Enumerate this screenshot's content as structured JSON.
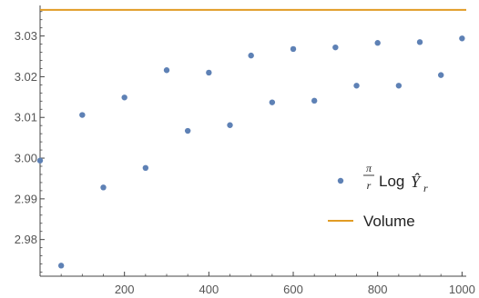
{
  "chart_data": {
    "type": "scatter",
    "xlim": [
      0,
      1010
    ],
    "ylim": [
      2.971,
      3.0375
    ],
    "x_ticks": [
      200,
      400,
      600,
      800,
      1000
    ],
    "x_tick_labels": [
      "200",
      "400",
      "600",
      "800",
      "1000"
    ],
    "y_ticks": [
      2.98,
      2.99,
      3.0,
      3.01,
      3.02,
      3.03
    ],
    "y_tick_labels": [
      "2.98",
      "2.99",
      "3.00",
      "3.01",
      "3.02",
      "3.03"
    ],
    "grid": false,
    "legend_position": "bottom-right",
    "series": [
      {
        "name": "Log Ŷ",
        "legend_parts": {
          "numerator": "π",
          "denominator": "r",
          "text": "Log ",
          "variable": "Ŷ",
          "subscript": "r"
        },
        "kind": "scatter",
        "color": "#5e81b5",
        "points": [
          [
            0,
            2.9994
          ],
          [
            50,
            2.9736
          ],
          [
            100,
            3.0106
          ],
          [
            150,
            2.9928
          ],
          [
            200,
            3.0149
          ],
          [
            250,
            2.9976
          ],
          [
            300,
            3.0216
          ],
          [
            350,
            3.0067
          ],
          [
            400,
            3.021
          ],
          [
            450,
            3.0081
          ],
          [
            500,
            3.0252
          ],
          [
            550,
            3.0137
          ],
          [
            600,
            3.0268
          ],
          [
            650,
            3.0141
          ],
          [
            700,
            3.0272
          ],
          [
            750,
            3.0178
          ],
          [
            800,
            3.0283
          ],
          [
            850,
            3.0178
          ],
          [
            900,
            3.0285
          ],
          [
            950,
            3.0204
          ],
          [
            1000,
            3.0294
          ]
        ]
      },
      {
        "name": "Volume",
        "kind": "hline",
        "color": "#e19c24",
        "y": 3.0364
      }
    ]
  }
}
